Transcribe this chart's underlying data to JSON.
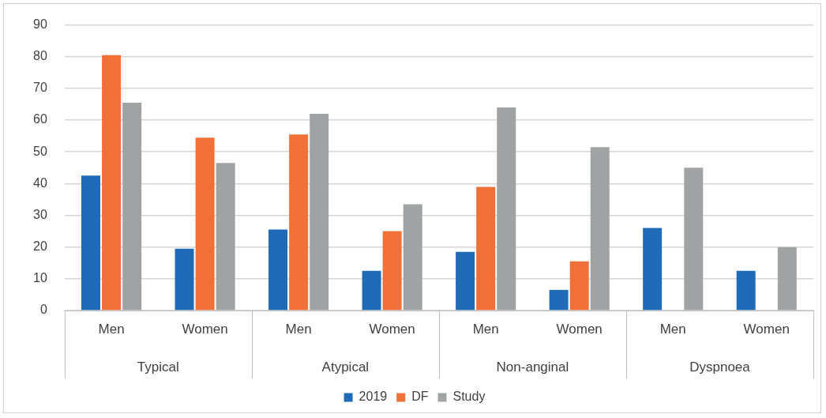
{
  "chart_data": {
    "type": "bar",
    "categories": [
      "Men",
      "Women",
      "Men",
      "Women",
      "Men",
      "Women",
      "Men",
      "Women"
    ],
    "annotations": [
      "Typical",
      "Atypical",
      "Non-anginal",
      "Dyspnoea"
    ],
    "series": [
      {
        "name": "2019",
        "color": "#1f6bb8",
        "values": [
          42.5,
          19.5,
          25.5,
          12.5,
          18.5,
          6.5,
          26,
          12.5
        ]
      },
      {
        "name": "DF",
        "color": "#f07038",
        "values": [
          80.5,
          54.5,
          55.5,
          25,
          39,
          15.5,
          null,
          null
        ]
      },
      {
        "name": "Study",
        "color": "#a0a3a4",
        "values": [
          65.5,
          46.5,
          62,
          33.5,
          64,
          51.5,
          45,
          20
        ]
      }
    ],
    "ylim": [
      0,
      90
    ],
    "yticks": [
      0,
      10,
      20,
      30,
      40,
      50,
      60,
      70,
      80,
      90
    ],
    "grid": "y",
    "legend": "bottom"
  }
}
